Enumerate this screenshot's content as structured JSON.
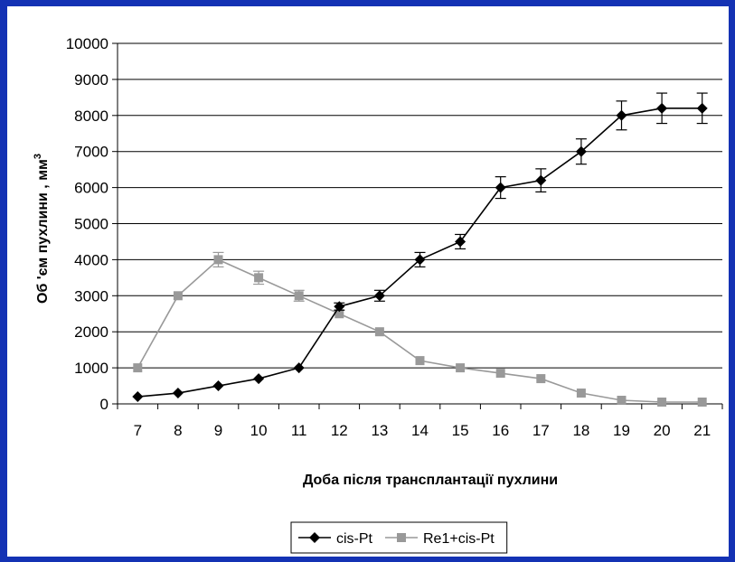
{
  "chart_data": {
    "type": "line",
    "title": "",
    "xlabel": "Доба після трансплантації пухлини",
    "ylabel": "Об 'єм пухлини  , мм",
    "ylabel_sup": "3",
    "ylim": [
      0,
      10000
    ],
    "yticks": [
      0,
      1000,
      2000,
      3000,
      4000,
      5000,
      6000,
      7000,
      8000,
      9000,
      10000
    ],
    "categories": [
      "7",
      "8",
      "9",
      "10",
      "11",
      "12",
      "13",
      "14",
      "15",
      "16",
      "17",
      "18",
      "19",
      "20",
      "21"
    ],
    "grid": "horizontal",
    "legend_position": "bottom",
    "series": [
      {
        "name": "cis-Pt",
        "color": "#000000",
        "marker": "diamond",
        "x": [
          7,
          8,
          9,
          10,
          11,
          12,
          13,
          14,
          15,
          16,
          17,
          18,
          19,
          20,
          21
        ],
        "values": [
          200,
          300,
          500,
          700,
          1000,
          2700,
          3000,
          4000,
          4500,
          6000,
          6200,
          7000,
          8000,
          8200,
          8200
        ],
        "errors": [
          0,
          0,
          0,
          0,
          0,
          100,
          150,
          200,
          200,
          300,
          320,
          350,
          400,
          420,
          420
        ]
      },
      {
        "name": "Re1+cis-Pt",
        "color": "#999999",
        "marker": "square",
        "x": [
          7,
          8,
          9,
          10,
          11,
          12,
          13,
          14,
          15,
          16,
          17,
          18,
          19,
          20,
          21
        ],
        "values": [
          1000,
          3000,
          4000,
          3500,
          3000,
          2500,
          2000,
          1200,
          1000,
          850,
          700,
          300,
          100,
          50,
          50
        ],
        "errors": [
          0,
          0,
          200,
          180,
          150,
          0,
          0,
          0,
          0,
          0,
          0,
          0,
          0,
          0,
          0
        ]
      }
    ]
  }
}
